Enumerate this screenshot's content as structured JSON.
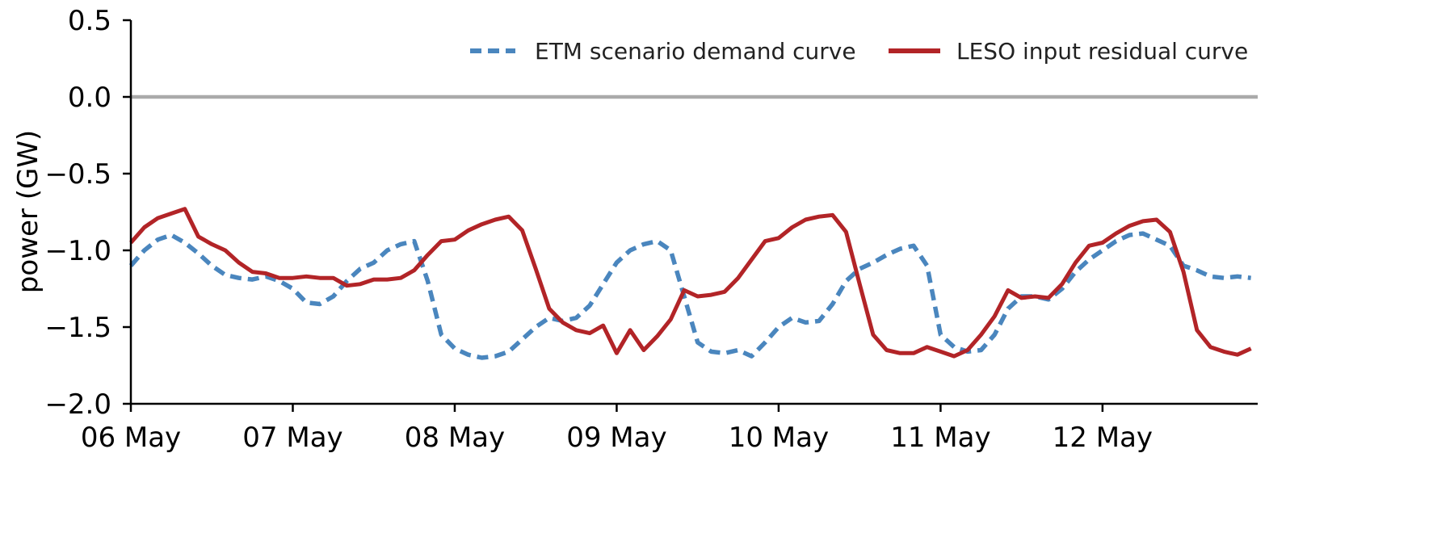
{
  "chart_data": {
    "type": "line",
    "title": "",
    "xlabel": "",
    "ylabel": "power (GW)",
    "xlim": [
      "2016-05-06T00:00",
      "2016-05-12T23:00"
    ],
    "ylim": [
      -2.0,
      0.5
    ],
    "yticks": [
      0.5,
      0.0,
      -0.5,
      -1.0,
      -1.5,
      -2.0
    ],
    "ytick_labels": [
      "0.5",
      "0.0",
      "−0.5",
      "−1.0",
      "−1.5",
      "−2.0"
    ],
    "xticks": [
      "2016-05-06",
      "2016-05-07",
      "2016-05-08",
      "2016-05-09",
      "2016-05-10",
      "2016-05-11",
      "2016-05-12"
    ],
    "xtick_labels": [
      "06 May",
      "07 May",
      "08 May",
      "09 May",
      "10 May",
      "11 May",
      "12 May"
    ],
    "reference_line": {
      "y": 0.0,
      "color": "#aaaaaa"
    },
    "legend": {
      "position": "top-right"
    },
    "grid": false,
    "time_step": "2 hours",
    "series": [
      {
        "name": "ETM scenario demand curve",
        "style": "dashed",
        "color": "#4a86be",
        "points": [
          [
            "2016-05-06T00:00",
            -1.1
          ],
          [
            "2016-05-06T02:00",
            -1.0
          ],
          [
            "2016-05-06T04:00",
            -0.93
          ],
          [
            "2016-05-06T06:00",
            -0.9
          ],
          [
            "2016-05-06T08:00",
            -0.95
          ],
          [
            "2016-05-06T10:00",
            -1.02
          ],
          [
            "2016-05-06T12:00",
            -1.1
          ],
          [
            "2016-05-06T14:00",
            -1.16
          ],
          [
            "2016-05-06T16:00",
            -1.18
          ],
          [
            "2016-05-06T18:00",
            -1.19
          ],
          [
            "2016-05-06T20:00",
            -1.17
          ],
          [
            "2016-05-06T22:00",
            -1.2
          ],
          [
            "2016-05-07T00:00",
            -1.25
          ],
          [
            "2016-05-07T02:00",
            -1.34
          ],
          [
            "2016-05-07T04:00",
            -1.35
          ],
          [
            "2016-05-07T06:00",
            -1.3
          ],
          [
            "2016-05-07T08:00",
            -1.2
          ],
          [
            "2016-05-07T10:00",
            -1.12
          ],
          [
            "2016-05-07T12:00",
            -1.08
          ],
          [
            "2016-05-07T14:00",
            -1.0
          ],
          [
            "2016-05-07T16:00",
            -0.96
          ],
          [
            "2016-05-07T18:00",
            -0.94
          ],
          [
            "2016-05-07T20:00",
            -1.2
          ],
          [
            "2016-05-07T22:00",
            -1.55
          ],
          [
            "2016-05-08T00:00",
            -1.64
          ],
          [
            "2016-05-08T02:00",
            -1.68
          ],
          [
            "2016-05-08T04:00",
            -1.7
          ],
          [
            "2016-05-08T06:00",
            -1.69
          ],
          [
            "2016-05-08T08:00",
            -1.66
          ],
          [
            "2016-05-08T10:00",
            -1.58
          ],
          [
            "2016-05-08T12:00",
            -1.5
          ],
          [
            "2016-05-08T14:00",
            -1.44
          ],
          [
            "2016-05-08T16:00",
            -1.46
          ],
          [
            "2016-05-08T18:00",
            -1.44
          ],
          [
            "2016-05-08T20:00",
            -1.36
          ],
          [
            "2016-05-08T22:00",
            -1.22
          ],
          [
            "2016-05-09T00:00",
            -1.08
          ],
          [
            "2016-05-09T02:00",
            -1.0
          ],
          [
            "2016-05-09T04:00",
            -0.96
          ],
          [
            "2016-05-09T06:00",
            -0.94
          ],
          [
            "2016-05-09T08:00",
            -1.0
          ],
          [
            "2016-05-09T10:00",
            -1.3
          ],
          [
            "2016-05-09T12:00",
            -1.6
          ],
          [
            "2016-05-09T14:00",
            -1.66
          ],
          [
            "2016-05-09T16:00",
            -1.67
          ],
          [
            "2016-05-09T18:00",
            -1.65
          ],
          [
            "2016-05-09T20:00",
            -1.69
          ],
          [
            "2016-05-09T22:00",
            -1.6
          ],
          [
            "2016-05-10T00:00",
            -1.5
          ],
          [
            "2016-05-10T02:00",
            -1.44
          ],
          [
            "2016-05-10T04:00",
            -1.47
          ],
          [
            "2016-05-10T06:00",
            -1.46
          ],
          [
            "2016-05-10T08:00",
            -1.35
          ],
          [
            "2016-05-10T10:00",
            -1.2
          ],
          [
            "2016-05-10T12:00",
            -1.12
          ],
          [
            "2016-05-10T14:00",
            -1.08
          ],
          [
            "2016-05-10T16:00",
            -1.03
          ],
          [
            "2016-05-10T18:00",
            -0.99
          ],
          [
            "2016-05-10T20:00",
            -0.97
          ],
          [
            "2016-05-10T22:00",
            -1.1
          ],
          [
            "2016-05-11T00:00",
            -1.55
          ],
          [
            "2016-05-11T02:00",
            -1.63
          ],
          [
            "2016-05-11T04:00",
            -1.66
          ],
          [
            "2016-05-11T06:00",
            -1.65
          ],
          [
            "2016-05-11T08:00",
            -1.55
          ],
          [
            "2016-05-11T10:00",
            -1.38
          ],
          [
            "2016-05-11T12:00",
            -1.3
          ],
          [
            "2016-05-11T14:00",
            -1.3
          ],
          [
            "2016-05-11T16:00",
            -1.32
          ],
          [
            "2016-05-11T18:00",
            -1.25
          ],
          [
            "2016-05-11T20:00",
            -1.14
          ],
          [
            "2016-05-11T22:00",
            -1.06
          ],
          [
            "2016-05-12T00:00",
            -1.0
          ],
          [
            "2016-05-12T02:00",
            -0.94
          ],
          [
            "2016-05-12T04:00",
            -0.9
          ],
          [
            "2016-05-12T06:00",
            -0.89
          ],
          [
            "2016-05-12T08:00",
            -0.93
          ],
          [
            "2016-05-12T10:00",
            -0.97
          ],
          [
            "2016-05-12T12:00",
            -1.1
          ],
          [
            "2016-05-12T14:00",
            -1.13
          ],
          [
            "2016-05-12T16:00",
            -1.17
          ],
          [
            "2016-05-12T18:00",
            -1.18
          ],
          [
            "2016-05-12T20:00",
            -1.17
          ],
          [
            "2016-05-12T22:00",
            -1.18
          ]
        ]
      },
      {
        "name": "LESO input residual curve",
        "style": "solid",
        "color": "#b22427",
        "points": [
          [
            "2016-05-06T00:00",
            -0.95
          ],
          [
            "2016-05-06T02:00",
            -0.85
          ],
          [
            "2016-05-06T04:00",
            -0.79
          ],
          [
            "2016-05-06T06:00",
            -0.76
          ],
          [
            "2016-05-06T08:00",
            -0.73
          ],
          [
            "2016-05-06T10:00",
            -0.91
          ],
          [
            "2016-05-06T12:00",
            -0.96
          ],
          [
            "2016-05-06T14:00",
            -1.0
          ],
          [
            "2016-05-06T16:00",
            -1.08
          ],
          [
            "2016-05-06T18:00",
            -1.14
          ],
          [
            "2016-05-06T20:00",
            -1.15
          ],
          [
            "2016-05-06T22:00",
            -1.18
          ],
          [
            "2016-05-07T00:00",
            -1.18
          ],
          [
            "2016-05-07T02:00",
            -1.17
          ],
          [
            "2016-05-07T04:00",
            -1.18
          ],
          [
            "2016-05-07T06:00",
            -1.18
          ],
          [
            "2016-05-07T08:00",
            -1.23
          ],
          [
            "2016-05-07T10:00",
            -1.22
          ],
          [
            "2016-05-07T12:00",
            -1.19
          ],
          [
            "2016-05-07T14:00",
            -1.19
          ],
          [
            "2016-05-07T16:00",
            -1.18
          ],
          [
            "2016-05-07T18:00",
            -1.13
          ],
          [
            "2016-05-07T20:00",
            -1.03
          ],
          [
            "2016-05-07T22:00",
            -0.94
          ],
          [
            "2016-05-08T00:00",
            -0.93
          ],
          [
            "2016-05-08T02:00",
            -0.87
          ],
          [
            "2016-05-08T04:00",
            -0.83
          ],
          [
            "2016-05-08T06:00",
            -0.8
          ],
          [
            "2016-05-08T08:00",
            -0.78
          ],
          [
            "2016-05-08T10:00",
            -0.87
          ],
          [
            "2016-05-08T12:00",
            -1.12
          ],
          [
            "2016-05-08T14:00",
            -1.38
          ],
          [
            "2016-05-08T16:00",
            -1.47
          ],
          [
            "2016-05-08T18:00",
            -1.52
          ],
          [
            "2016-05-08T20:00",
            -1.54
          ],
          [
            "2016-05-08T22:00",
            -1.49
          ],
          [
            "2016-05-09T00:00",
            -1.67
          ],
          [
            "2016-05-09T02:00",
            -1.52
          ],
          [
            "2016-05-09T04:00",
            -1.65
          ],
          [
            "2016-05-09T06:00",
            -1.56
          ],
          [
            "2016-05-09T08:00",
            -1.45
          ],
          [
            "2016-05-09T10:00",
            -1.26
          ],
          [
            "2016-05-09T12:00",
            -1.3
          ],
          [
            "2016-05-09T14:00",
            -1.29
          ],
          [
            "2016-05-09T16:00",
            -1.27
          ],
          [
            "2016-05-09T18:00",
            -1.18
          ],
          [
            "2016-05-09T20:00",
            -1.06
          ],
          [
            "2016-05-09T22:00",
            -0.94
          ],
          [
            "2016-05-10T00:00",
            -0.92
          ],
          [
            "2016-05-10T02:00",
            -0.85
          ],
          [
            "2016-05-10T04:00",
            -0.8
          ],
          [
            "2016-05-10T06:00",
            -0.78
          ],
          [
            "2016-05-10T08:00",
            -0.77
          ],
          [
            "2016-05-10T10:00",
            -0.88
          ],
          [
            "2016-05-10T12:00",
            -1.22
          ],
          [
            "2016-05-10T14:00",
            -1.55
          ],
          [
            "2016-05-10T16:00",
            -1.65
          ],
          [
            "2016-05-10T18:00",
            -1.67
          ],
          [
            "2016-05-10T20:00",
            -1.67
          ],
          [
            "2016-05-10T22:00",
            -1.63
          ],
          [
            "2016-05-11T00:00",
            -1.66
          ],
          [
            "2016-05-11T02:00",
            -1.69
          ],
          [
            "2016-05-11T04:00",
            -1.65
          ],
          [
            "2016-05-11T06:00",
            -1.55
          ],
          [
            "2016-05-11T08:00",
            -1.43
          ],
          [
            "2016-05-11T10:00",
            -1.26
          ],
          [
            "2016-05-11T12:00",
            -1.31
          ],
          [
            "2016-05-11T14:00",
            -1.3
          ],
          [
            "2016-05-11T16:00",
            -1.31
          ],
          [
            "2016-05-11T18:00",
            -1.22
          ],
          [
            "2016-05-11T20:00",
            -1.08
          ],
          [
            "2016-05-11T22:00",
            -0.97
          ],
          [
            "2016-05-12T00:00",
            -0.95
          ],
          [
            "2016-05-12T02:00",
            -0.89
          ],
          [
            "2016-05-12T04:00",
            -0.84
          ],
          [
            "2016-05-12T06:00",
            -0.81
          ],
          [
            "2016-05-12T08:00",
            -0.8
          ],
          [
            "2016-05-12T10:00",
            -0.88
          ],
          [
            "2016-05-12T12:00",
            -1.14
          ],
          [
            "2016-05-12T14:00",
            -1.52
          ],
          [
            "2016-05-12T16:00",
            -1.63
          ],
          [
            "2016-05-12T18:00",
            -1.66
          ],
          [
            "2016-05-12T20:00",
            -1.68
          ],
          [
            "2016-05-12T22:00",
            -1.64
          ]
        ]
      }
    ]
  }
}
